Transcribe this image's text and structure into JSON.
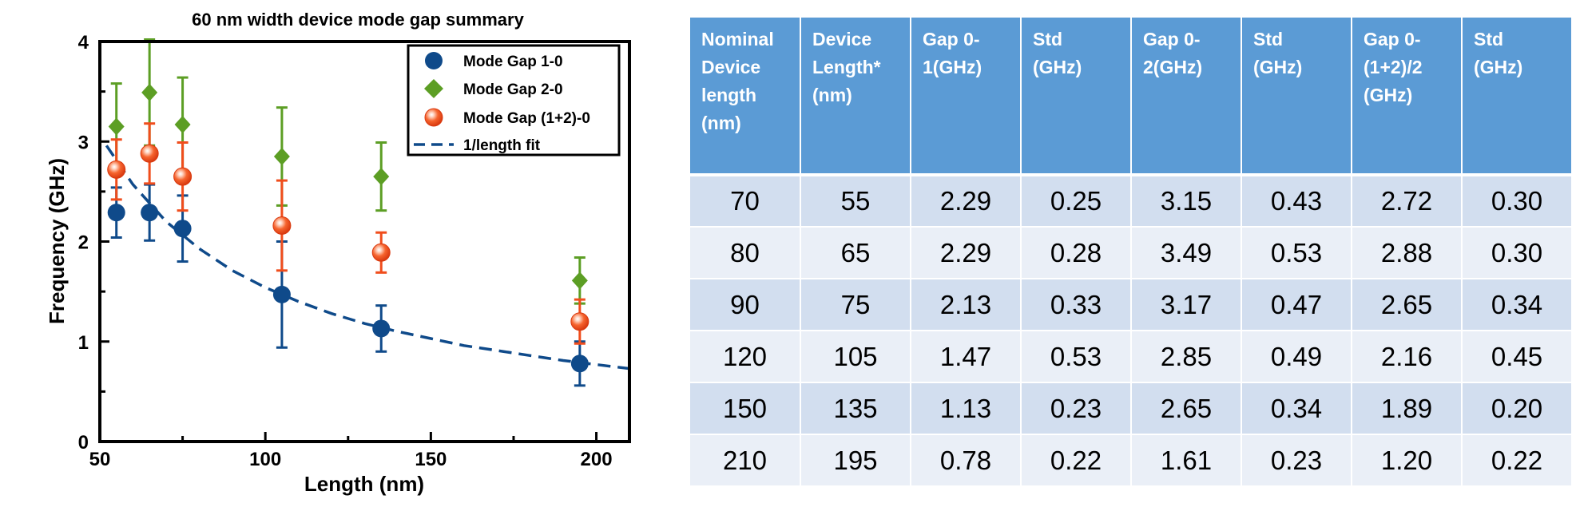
{
  "chart_data": [
    {
      "type": "scatter",
      "title": "60 nm width device mode gap summary",
      "xlabel": "Length (nm)",
      "ylabel": "Frequency (GHz)",
      "xlim": [
        50,
        210
      ],
      "ylim": [
        0,
        4
      ],
      "x_ticks": [
        "50",
        "100",
        "150",
        "200"
      ],
      "y_ticks": [
        "0",
        "1",
        "2",
        "3",
        "4"
      ],
      "legend_position": "top-right",
      "series": [
        {
          "name": "Mode Gap 1-0",
          "marker": "circle",
          "color": "#0f4a8a",
          "x": [
            55,
            65,
            75,
            105,
            135,
            195
          ],
          "y": [
            2.29,
            2.29,
            2.13,
            1.47,
            1.13,
            0.78
          ],
          "err": [
            0.25,
            0.28,
            0.33,
            0.53,
            0.23,
            0.22
          ]
        },
        {
          "name": "Mode Gap 2-0",
          "marker": "diamond",
          "color": "#5c9e24",
          "x": [
            55,
            65,
            75,
            105,
            135,
            195
          ],
          "y": [
            3.15,
            3.49,
            3.17,
            2.85,
            2.65,
            1.61
          ],
          "err": [
            0.43,
            0.53,
            0.47,
            0.49,
            0.34,
            0.23
          ]
        },
        {
          "name": "Mode Gap (1+2)-0",
          "marker": "sphere",
          "color": "#f04d1c",
          "x": [
            55,
            65,
            75,
            105,
            135,
            195
          ],
          "y": [
            2.72,
            2.88,
            2.65,
            2.16,
            1.89,
            1.2
          ],
          "err": [
            0.3,
            0.3,
            0.34,
            0.45,
            0.2,
            0.22
          ]
        },
        {
          "name": "1/length fit",
          "line": "dashed",
          "color": "#0f4a8a",
          "x": [
            52,
            60,
            70,
            80,
            90,
            100,
            110,
            120,
            130,
            140,
            150,
            160,
            170,
            180,
            190,
            200,
            210
          ],
          "y": [
            2.96,
            2.57,
            2.2,
            1.93,
            1.71,
            1.54,
            1.4,
            1.28,
            1.18,
            1.1,
            1.03,
            0.96,
            0.91,
            0.86,
            0.81,
            0.77,
            0.73
          ]
        }
      ]
    },
    {
      "type": "table",
      "columns": [
        [
          "Nominal",
          "Device",
          "length",
          "(nm)"
        ],
        [
          "Device",
          "Length*",
          "(nm)"
        ],
        [
          "Gap 0-",
          "1(GHz)"
        ],
        [
          "Std",
          "(GHz)"
        ],
        [
          "Gap 0-",
          "2(GHz)"
        ],
        [
          "Std",
          "(GHz)"
        ],
        [
          "Gap 0-",
          "(1+2)/2",
          "(GHz)"
        ],
        [
          "Std",
          "(GHz)"
        ]
      ],
      "rows": [
        [
          "70",
          "55",
          "2.29",
          "0.25",
          "3.15",
          "0.43",
          "2.72",
          "0.30"
        ],
        [
          "80",
          "65",
          "2.29",
          "0.28",
          "3.49",
          "0.53",
          "2.88",
          "0.30"
        ],
        [
          "90",
          "75",
          "2.13",
          "0.33",
          "3.17",
          "0.47",
          "2.65",
          "0.34"
        ],
        [
          "120",
          "105",
          "1.47",
          "0.53",
          "2.85",
          "0.49",
          "2.16",
          "0.45"
        ],
        [
          "150",
          "135",
          "1.13",
          "0.23",
          "2.65",
          "0.34",
          "1.89",
          "0.20"
        ],
        [
          "210",
          "195",
          "0.78",
          "0.22",
          "1.61",
          "0.23",
          "1.20",
          "0.22"
        ]
      ],
      "colors": {
        "header_bg": "#5b9bd5",
        "row_odd": "#d2deef",
        "row_even": "#eaeff7"
      }
    }
  ]
}
